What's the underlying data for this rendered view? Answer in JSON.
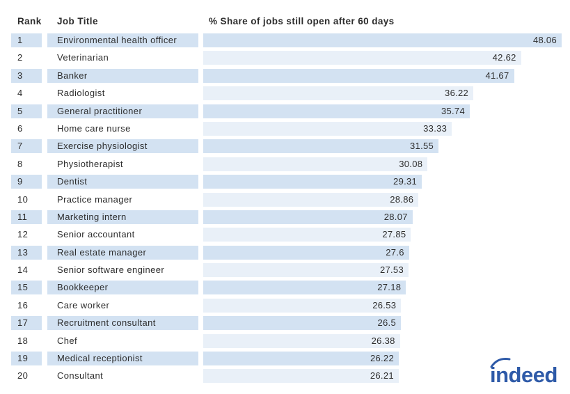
{
  "header": {
    "rank_label": "Rank",
    "job_title_label": "Job Title",
    "share_label": "% Share of jobs still open after 60 days"
  },
  "chart_data": {
    "type": "bar",
    "orientation": "horizontal",
    "title": "% Share of jobs still open after 60 days",
    "xlim": [
      0,
      48.06
    ],
    "grid": false,
    "legend": false,
    "rows": [
      {
        "rank": 1,
        "job_title": "Environmental health officer",
        "value": 48.06
      },
      {
        "rank": 2,
        "job_title": "Veterinarian",
        "value": 42.62
      },
      {
        "rank": 3,
        "job_title": "Banker",
        "value": 41.67
      },
      {
        "rank": 4,
        "job_title": "Radiologist",
        "value": 36.22
      },
      {
        "rank": 5,
        "job_title": "General practitioner",
        "value": 35.74
      },
      {
        "rank": 6,
        "job_title": "Home care nurse",
        "value": 33.33
      },
      {
        "rank": 7,
        "job_title": "Exercise physiologist",
        "value": 31.55
      },
      {
        "rank": 8,
        "job_title": "Physiotherapist",
        "value": 30.08
      },
      {
        "rank": 9,
        "job_title": "Dentist",
        "value": 29.31
      },
      {
        "rank": 10,
        "job_title": "Practice manager",
        "value": 28.86
      },
      {
        "rank": 11,
        "job_title": "Marketing intern",
        "value": 28.07
      },
      {
        "rank": 12,
        "job_title": "Senior accountant",
        "value": 27.85
      },
      {
        "rank": 13,
        "job_title": "Real estate manager",
        "value": 27.6
      },
      {
        "rank": 14,
        "job_title": "Senior software engineer",
        "value": 27.53
      },
      {
        "rank": 15,
        "job_title": "Bookkeeper",
        "value": 27.18
      },
      {
        "rank": 16,
        "job_title": "Care worker",
        "value": 26.53
      },
      {
        "rank": 17,
        "job_title": "Recruitment consultant",
        "value": 26.5
      },
      {
        "rank": 18,
        "job_title": "Chef",
        "value": 26.38
      },
      {
        "rank": 19,
        "job_title": "Medical receptionist",
        "value": 26.22
      },
      {
        "rank": 20,
        "job_title": "Consultant",
        "value": 26.21
      }
    ]
  },
  "branding": {
    "logo_text": "indeed"
  },
  "colors": {
    "row_shaded": "#d3e2f2",
    "row_light_bar": "#e9f0f8",
    "text": "#2d2d2d",
    "logo_blue": "#2e5aa8"
  }
}
